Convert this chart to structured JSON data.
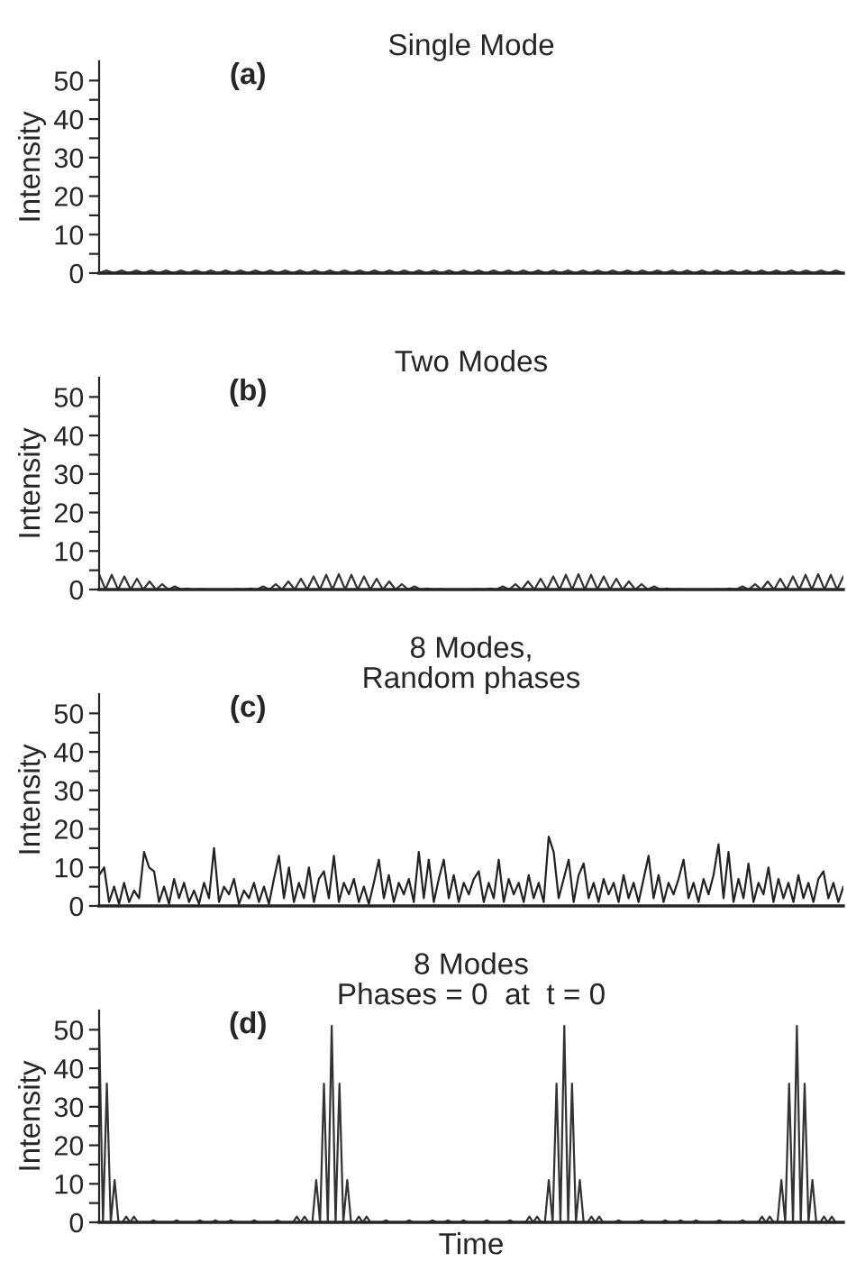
{
  "chart_data": [
    {
      "type": "line",
      "title": "Single Mode",
      "ylabel": "Intensity",
      "annotations": [
        "(a)"
      ],
      "grid": false,
      "legend": false,
      "tick_labels": "y",
      "ylim": [
        0,
        55
      ],
      "yticks": [
        0,
        {
          "value": 5,
          "label": null
        },
        10,
        {
          "value": 15,
          "label": null
        },
        20,
        {
          "value": 25,
          "label": null
        },
        30,
        {
          "value": 35,
          "label": null
        },
        40,
        {
          "value": 45,
          "label": null
        },
        50
      ],
      "categories": [
        null,
        null,
        null,
        null,
        null,
        null,
        null,
        null,
        null,
        null,
        null,
        null,
        null,
        null,
        null,
        null,
        null,
        null,
        null,
        null,
        null,
        null,
        null,
        null,
        null,
        null,
        null,
        null,
        null,
        null,
        null,
        null,
        null,
        null,
        null,
        null,
        null,
        null,
        null,
        null,
        null,
        null,
        null,
        null,
        null,
        null,
        null,
        null,
        null,
        null,
        null,
        null,
        null,
        null,
        null,
        null,
        null,
        null,
        null,
        null,
        null,
        null,
        null,
        null,
        null,
        null,
        null,
        null,
        null,
        null,
        null,
        null,
        null,
        null,
        null,
        null,
        null,
        null,
        null,
        null,
        null,
        null,
        null,
        null,
        null,
        null,
        null,
        null,
        null,
        null,
        null,
        null,
        null,
        null,
        null,
        null,
        null,
        null,
        null,
        null,
        null
      ],
      "series": [
        {
          "color": "#333333",
          "values": [
            0,
            0.7,
            0,
            0.7,
            0,
            0.7,
            0,
            0.7,
            0,
            0.7,
            0,
            0.7,
            0,
            0.7,
            0,
            0.7,
            0,
            0.7,
            0,
            0.7,
            0,
            0.7,
            0,
            0.7,
            0,
            0.7,
            0,
            0.7,
            0,
            0.7,
            0,
            0.7,
            0,
            0.7,
            0,
            0.7,
            0,
            0.7,
            0,
            0.7,
            0,
            0.7,
            0,
            0.7,
            0,
            0.7,
            0,
            0.7,
            0,
            0.7,
            0,
            0.7,
            0,
            0.7,
            0,
            0.7,
            0,
            0.7,
            0,
            0.7,
            0,
            0.7,
            0,
            0.7,
            0,
            0.7,
            0,
            0.7,
            0,
            0.7,
            0,
            0.7,
            0,
            0.7,
            0,
            0.7,
            0,
            0.7,
            0,
            0.7,
            0,
            0.7,
            0,
            0.7,
            0,
            0.7,
            0,
            0.7,
            0,
            0.7,
            0,
            0.7,
            0,
            0.7,
            0,
            0.7,
            0,
            0.7,
            0,
            0.7,
            0
          ]
        }
      ]
    },
    {
      "type": "line",
      "title": "Two Modes",
      "ylabel": "Intensity",
      "annotations": [
        "(b)"
      ],
      "grid": false,
      "legend": false,
      "tick_labels": "y",
      "ylim": [
        0,
        55
      ],
      "yticks": [
        0,
        {
          "value": 5,
          "label": null
        },
        10,
        {
          "value": 15,
          "label": null
        },
        20,
        {
          "value": 25,
          "label": null
        },
        30,
        {
          "value": 35,
          "label": null
        },
        40,
        {
          "value": 45,
          "label": null
        },
        50
      ],
      "categories": [
        null,
        null,
        null,
        null,
        null,
        null,
        null,
        null,
        null,
        null,
        null,
        null,
        null,
        null,
        null,
        null,
        null,
        null,
        null,
        null,
        null,
        null,
        null,
        null,
        null,
        null,
        null,
        null,
        null,
        null,
        null,
        null,
        null,
        null,
        null,
        null,
        null,
        null,
        null,
        null,
        null,
        null,
        null,
        null,
        null,
        null,
        null,
        null,
        null,
        null,
        null,
        null,
        null,
        null,
        null,
        null,
        null,
        null,
        null,
        null,
        null,
        null,
        null,
        null,
        null,
        null,
        null,
        null,
        null,
        null,
        null,
        null,
        null,
        null,
        null,
        null,
        null,
        null,
        null,
        null,
        null,
        null,
        null,
        null,
        null,
        null,
        null,
        null,
        null,
        null,
        null,
        null,
        null,
        null,
        null,
        null,
        null,
        null,
        null,
        null,
        null,
        null,
        null,
        null,
        null,
        null,
        null,
        null,
        null,
        null,
        null,
        null,
        null,
        null,
        null,
        null,
        null,
        null,
        null
      ],
      "series": [
        {
          "color": "#333333",
          "values": [
            4,
            0,
            3.8,
            0,
            3.4,
            0,
            2.8,
            0,
            2.1,
            0,
            1.4,
            0,
            0.8,
            0,
            0.3,
            0,
            0.1,
            0,
            0,
            0,
            0,
            0,
            0.1,
            0,
            0.3,
            0,
            0.8,
            0,
            1.4,
            0,
            2.1,
            0,
            2.8,
            0,
            3.4,
            0,
            3.8,
            0,
            4,
            0,
            3.8,
            0,
            3.4,
            0,
            2.8,
            0,
            2.1,
            0,
            1.4,
            0,
            0.8,
            0,
            0.3,
            0,
            0.1,
            0,
            0,
            0,
            0,
            0,
            0.1,
            0,
            0.3,
            0,
            0.8,
            0,
            1.4,
            0,
            2.1,
            0,
            2.8,
            0,
            3.4,
            0,
            3.8,
            0,
            4,
            0,
            3.8,
            0,
            3.4,
            0,
            2.8,
            0,
            2.1,
            0,
            1.4,
            0,
            0.8,
            0,
            0.3,
            0,
            0.1,
            0,
            0,
            0,
            0,
            0,
            0.1,
            0,
            0.3,
            0,
            0.8,
            0,
            1.4,
            0,
            2.1,
            0,
            2.8,
            0,
            3.4,
            0,
            3.8,
            0,
            4,
            0,
            3.8,
            0,
            3.4
          ]
        }
      ]
    },
    {
      "type": "line",
      "title": "8 Modes,\nRandom phases",
      "ylabel": "Intensity",
      "annotations": [
        "(c)"
      ],
      "grid": false,
      "legend": false,
      "tick_labels": "y",
      "ylim": [
        0,
        55
      ],
      "yticks": [
        0,
        {
          "value": 5,
          "label": null
        },
        10,
        {
          "value": 15,
          "label": null
        },
        20,
        {
          "value": 25,
          "label": null
        },
        30,
        {
          "value": 35,
          "label": null
        },
        40,
        {
          "value": 45,
          "label": null
        },
        50
      ],
      "categories": [
        null,
        null,
        null,
        null,
        null,
        null,
        null,
        null,
        null,
        null,
        null,
        null,
        null,
        null,
        null,
        null,
        null,
        null,
        null,
        null,
        null,
        null,
        null,
        null,
        null,
        null,
        null,
        null,
        null,
        null,
        null,
        null,
        null,
        null,
        null,
        null,
        null,
        null,
        null,
        null,
        null,
        null,
        null,
        null,
        null,
        null,
        null,
        null,
        null,
        null,
        null,
        null,
        null,
        null,
        null,
        null,
        null,
        null,
        null,
        null,
        null,
        null,
        null,
        null,
        null,
        null,
        null,
        null,
        null,
        null,
        null,
        null,
        null,
        null,
        null,
        null,
        null,
        null,
        null,
        null,
        null,
        null,
        null,
        null,
        null,
        null,
        null,
        null,
        null,
        null,
        null,
        null,
        null,
        null,
        null,
        null,
        null,
        null,
        null,
        null,
        null,
        null,
        null,
        null,
        null,
        null,
        null,
        null,
        null,
        null,
        null,
        null,
        null,
        null,
        null,
        null,
        null,
        null,
        null,
        null,
        null,
        null,
        null,
        null,
        null,
        null,
        null,
        null,
        null,
        null,
        null,
        null,
        null,
        null,
        null,
        null,
        null,
        null,
        null,
        null,
        null,
        null,
        null,
        null,
        null,
        null,
        null,
        null,
        null,
        null
      ],
      "series": [
        {
          "color": "#222222",
          "values": [
            8,
            10,
            1,
            5,
            0.5,
            6,
            1,
            4,
            2,
            14,
            10,
            9,
            1,
            5,
            0.5,
            7,
            2,
            6,
            1,
            4,
            0.5,
            6,
            2,
            15,
            1,
            5,
            3,
            7,
            0.5,
            4,
            2,
            6,
            1,
            5,
            0.5,
            7,
            13,
            2,
            10,
            1,
            6,
            2,
            10,
            1,
            7,
            9,
            2,
            13,
            1,
            6,
            3,
            7,
            1,
            5,
            0.5,
            6,
            12,
            2,
            8,
            1,
            6,
            3,
            7,
            1,
            14,
            2,
            12,
            1,
            7,
            12,
            2,
            8,
            1,
            6,
            3,
            7,
            9,
            1,
            6,
            2,
            12,
            1,
            7,
            3,
            6,
            1,
            8,
            2,
            6,
            1,
            18,
            14,
            2,
            7,
            12,
            1,
            8,
            11,
            2,
            6,
            1,
            7,
            3,
            6,
            1,
            8,
            2,
            6,
            1,
            7,
            13,
            2,
            8,
            1,
            6,
            3,
            7,
            12,
            2,
            6,
            1,
            7,
            3,
            8,
            16,
            2,
            14,
            1,
            7,
            2,
            11,
            1,
            6,
            3,
            10,
            1,
            7,
            2,
            6,
            1,
            8,
            2,
            6,
            1,
            7,
            9,
            2,
            6,
            1,
            5
          ]
        }
      ]
    },
    {
      "type": "line",
      "title": "8 Modes\nPhases = 0  at  t = 0",
      "ylabel": "Intensity",
      "xlabel": "Time",
      "annotations": [
        "(d)"
      ],
      "grid": false,
      "legend": false,
      "tick_labels": "y",
      "ylim": [
        0,
        55
      ],
      "yticks": [
        0,
        {
          "value": 5,
          "label": null
        },
        10,
        {
          "value": 15,
          "label": null
        },
        20,
        {
          "value": 25,
          "label": null
        },
        30,
        {
          "value": 35,
          "label": null
        },
        40,
        {
          "value": 45,
          "label": null
        },
        50
      ],
      "categories": [
        null,
        null,
        null,
        null,
        null,
        null,
        null,
        null,
        null,
        null,
        null,
        null,
        null,
        null,
        null,
        null,
        null,
        null,
        null,
        null,
        null,
        null,
        null,
        null,
        null,
        null,
        null,
        null,
        null,
        null,
        null,
        null,
        null,
        null,
        null,
        null,
        null,
        null,
        null,
        null,
        null,
        null,
        null,
        null,
        null,
        null,
        null,
        null,
        null,
        null,
        null,
        null,
        null,
        null,
        null,
        null,
        null,
        null,
        null,
        null,
        null,
        null,
        null,
        null,
        null,
        null,
        null,
        null,
        null,
        null,
        null,
        null,
        null,
        null,
        null,
        null,
        null,
        null,
        null,
        null,
        null,
        null,
        null,
        null,
        null,
        null,
        null,
        null,
        null,
        null,
        null,
        null,
        null,
        null,
        null,
        null,
        null,
        null,
        null,
        null,
        null,
        null,
        null,
        null,
        null,
        null,
        null,
        null,
        null,
        null,
        null,
        null,
        null,
        null,
        null,
        null,
        null,
        null,
        null,
        null,
        null,
        null,
        null,
        null,
        null,
        null,
        null,
        null,
        null,
        null,
        null,
        null,
        null,
        null,
        null,
        null,
        null,
        null,
        null,
        null,
        null,
        null,
        null,
        null,
        null,
        null,
        null,
        null,
        null,
        null,
        null,
        null,
        null,
        null,
        null,
        null,
        null,
        null,
        null,
        null,
        null,
        null,
        null,
        null,
        null,
        null,
        null,
        null,
        null,
        null,
        null,
        null,
        null,
        null,
        null,
        null,
        null,
        null,
        null,
        null,
        null,
        null,
        null,
        null,
        null,
        null,
        null,
        null,
        null,
        null,
        null,
        null,
        null
      ],
      "series": [
        {
          "color": "#333333",
          "values": [
            51,
            0,
            36,
            0,
            11,
            0,
            0,
            1.5,
            0,
            1.5,
            0,
            0,
            0,
            0,
            0.5,
            0,
            0,
            0,
            0,
            0,
            0.5,
            0,
            0,
            0,
            0,
            0,
            0.5,
            0,
            0,
            0,
            0.5,
            0,
            0,
            0,
            0.5,
            0,
            0,
            0,
            0,
            0,
            0.5,
            0,
            0,
            0,
            0,
            0,
            0.5,
            0,
            0,
            0,
            0,
            1.5,
            0,
            1.5,
            0,
            0,
            11,
            0,
            36,
            0,
            51,
            0,
            36,
            0,
            11,
            0,
            0,
            1.5,
            0,
            1.5,
            0,
            0,
            0,
            0,
            0.5,
            0,
            0,
            0,
            0,
            0,
            0.5,
            0,
            0,
            0,
            0,
            0,
            0.5,
            0,
            0,
            0,
            0.5,
            0,
            0,
            0,
            0.5,
            0,
            0,
            0,
            0,
            0,
            0.5,
            0,
            0,
            0,
            0,
            0,
            0.5,
            0,
            0,
            0,
            0,
            1.5,
            0,
            1.5,
            0,
            0,
            11,
            0,
            36,
            0,
            51,
            0,
            36,
            0,
            11,
            0,
            0,
            1.5,
            0,
            1.5,
            0,
            0,
            0,
            0,
            0.5,
            0,
            0,
            0,
            0,
            0,
            0.5,
            0,
            0,
            0,
            0,
            0,
            0.5,
            0,
            0,
            0,
            0.5,
            0,
            0,
            0,
            0.5,
            0,
            0,
            0,
            0,
            0,
            0.5,
            0,
            0,
            0,
            0,
            0,
            0.5,
            0,
            0,
            0,
            0,
            1.5,
            0,
            1.5,
            0,
            0,
            11,
            0,
            36,
            0,
            51,
            0,
            36,
            0,
            11,
            0,
            0,
            1.5,
            0,
            1.5,
            0,
            0,
            0
          ]
        }
      ]
    }
  ]
}
